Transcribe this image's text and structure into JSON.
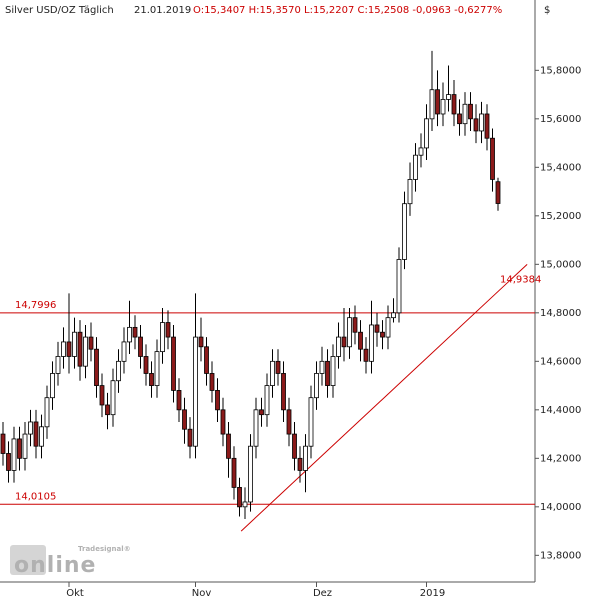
{
  "chart_data": {
    "type": "candlestick",
    "header": {
      "title": "Silver USD/OZ Täglich",
      "date": "21.01.2019",
      "ohlc_text": "O:15,3407 H:15,3570 L:15,2207 C:15,2508 -0,0963 -0,6277%"
    },
    "currency": "$",
    "logo": {
      "brand": "Tradesignal®",
      "name": "online"
    },
    "categories": [
      null,
      null,
      null,
      null,
      null,
      null,
      null,
      null,
      null,
      null,
      null,
      null,
      "Okt",
      null,
      null,
      null,
      null,
      null,
      null,
      null,
      null,
      null,
      null,
      null,
      null,
      null,
      null,
      null,
      null,
      null,
      null,
      null,
      null,
      null,
      null,
      "Nov",
      null,
      null,
      null,
      null,
      null,
      null,
      null,
      null,
      null,
      null,
      null,
      null,
      null,
      null,
      null,
      null,
      null,
      null,
      null,
      null,
      null,
      "Dez",
      null,
      null,
      null,
      null,
      null,
      null,
      null,
      null,
      null,
      null,
      null,
      null,
      null,
      null,
      null,
      null,
      null,
      null,
      null,
      "2019",
      null,
      null,
      null,
      null,
      null,
      null,
      null,
      null,
      null,
      null,
      null,
      null,
      null
    ],
    "open": [
      14.3,
      14.22,
      14.15,
      14.28,
      14.2,
      14.3,
      14.35,
      14.25,
      14.33,
      14.45,
      14.55,
      14.62,
      14.68,
      14.62,
      14.72,
      14.58,
      14.7,
      14.65,
      14.5,
      14.42,
      14.38,
      14.52,
      14.6,
      14.68,
      14.74,
      14.7,
      14.62,
      14.55,
      14.5,
      14.64,
      14.76,
      14.7,
      14.48,
      14.4,
      14.32,
      14.25,
      14.7,
      14.66,
      14.55,
      14.48,
      14.4,
      14.3,
      14.2,
      14.08,
      14.0,
      14.02,
      14.25,
      14.4,
      14.38,
      14.5,
      14.6,
      14.55,
      14.4,
      14.3,
      14.2,
      14.15,
      14.25,
      14.45,
      14.55,
      14.6,
      14.5,
      14.62,
      14.7,
      14.66,
      14.78,
      14.72,
      14.65,
      14.6,
      14.75,
      14.72,
      14.7,
      14.78,
      14.8,
      15.02,
      15.25,
      15.35,
      15.45,
      15.48,
      15.6,
      15.72,
      15.62,
      15.68,
      15.7,
      15.62,
      15.58,
      15.66,
      15.6,
      15.55,
      15.62,
      15.52,
      15.3407
    ],
    "high": [
      14.35,
      14.27,
      14.33,
      14.33,
      14.35,
      14.4,
      14.4,
      14.38,
      14.5,
      14.6,
      14.68,
      14.74,
      14.88,
      14.78,
      14.77,
      14.75,
      14.76,
      14.7,
      14.55,
      14.47,
      14.57,
      14.65,
      14.74,
      14.85,
      14.79,
      14.75,
      14.67,
      14.6,
      14.69,
      14.82,
      14.81,
      14.75,
      14.53,
      14.45,
      14.37,
      14.88,
      14.78,
      14.7,
      14.6,
      14.53,
      14.45,
      14.35,
      14.25,
      14.12,
      14.08,
      14.3,
      14.45,
      14.45,
      14.55,
      14.65,
      14.65,
      14.6,
      14.45,
      14.35,
      14.25,
      14.3,
      14.5,
      14.6,
      14.66,
      14.65,
      14.67,
      14.76,
      14.82,
      14.82,
      14.83,
      14.77,
      14.7,
      14.85,
      14.8,
      14.77,
      14.83,
      14.86,
      15.07,
      15.3,
      15.42,
      15.5,
      15.54,
      15.66,
      15.88,
      15.8,
      15.75,
      15.82,
      15.76,
      15.68,
      15.71,
      15.71,
      15.66,
      15.67,
      15.66,
      15.56,
      15.357
    ],
    "low": [
      14.17,
      14.1,
      14.1,
      14.15,
      14.15,
      14.25,
      14.2,
      14.2,
      14.28,
      14.4,
      14.5,
      14.57,
      14.55,
      14.57,
      14.52,
      14.53,
      14.6,
      14.45,
      14.37,
      14.32,
      14.33,
      14.47,
      14.55,
      14.63,
      14.65,
      14.57,
      14.5,
      14.45,
      14.45,
      14.59,
      14.65,
      14.43,
      14.35,
      14.26,
      14.2,
      14.2,
      14.6,
      14.5,
      14.43,
      14.35,
      14.25,
      14.12,
      14.03,
      13.96,
      13.95,
      13.98,
      14.2,
      14.33,
      14.33,
      14.45,
      14.5,
      14.35,
      14.25,
      14.15,
      14.1,
      14.06,
      14.2,
      14.4,
      14.5,
      14.45,
      14.45,
      14.57,
      14.6,
      14.61,
      14.67,
      14.6,
      14.55,
      14.55,
      14.66,
      14.65,
      14.65,
      14.76,
      14.76,
      14.98,
      15.2,
      15.3,
      15.4,
      15.43,
      15.55,
      15.57,
      15.57,
      15.63,
      15.57,
      15.53,
      15.53,
      15.55,
      15.5,
      15.5,
      15.47,
      15.3,
      15.2207
    ],
    "close": [
      14.22,
      14.15,
      14.28,
      14.2,
      14.3,
      14.35,
      14.25,
      14.33,
      14.45,
      14.55,
      14.62,
      14.68,
      14.62,
      14.72,
      14.58,
      14.7,
      14.65,
      14.5,
      14.42,
      14.38,
      14.52,
      14.6,
      14.68,
      14.74,
      14.7,
      14.62,
      14.55,
      14.5,
      14.64,
      14.76,
      14.7,
      14.48,
      14.4,
      14.32,
      14.25,
      14.7,
      14.66,
      14.55,
      14.48,
      14.4,
      14.3,
      14.2,
      14.08,
      14.0,
      14.02,
      14.25,
      14.4,
      14.38,
      14.5,
      14.6,
      14.55,
      14.4,
      14.3,
      14.2,
      14.15,
      14.25,
      14.45,
      14.55,
      14.6,
      14.5,
      14.62,
      14.7,
      14.66,
      14.78,
      14.72,
      14.65,
      14.6,
      14.75,
      14.72,
      14.7,
      14.78,
      14.8,
      15.02,
      15.25,
      15.35,
      15.45,
      15.48,
      15.6,
      15.72,
      15.62,
      15.68,
      15.7,
      15.62,
      15.58,
      15.66,
      15.6,
      15.55,
      15.62,
      15.52,
      15.35,
      15.2508
    ],
    "up_color": "#ffffff",
    "down_color": "#8b1a1a",
    "line_color": "#cc0000",
    "ylim": [
      13.69,
      16.09
    ],
    "yticks": [
      {
        "value": 13.8,
        "label": "13,8000"
      },
      {
        "value": 14.0,
        "label": "14,0000"
      },
      {
        "value": 14.2,
        "label": "14,2000"
      },
      {
        "value": 14.4,
        "label": "14,4000"
      },
      {
        "value": 14.6,
        "label": "14,6000"
      },
      {
        "value": 14.8,
        "label": "14,8000"
      },
      {
        "value": 15.0,
        "label": "15,0000"
      },
      {
        "value": 15.2,
        "label": "15,2000"
      },
      {
        "value": 15.4,
        "label": "15,4000"
      },
      {
        "value": 15.6,
        "label": "15,6000"
      },
      {
        "value": 15.8,
        "label": "15,8000"
      }
    ],
    "hlines": [
      {
        "value": 14.7996,
        "label": "14,7996"
      },
      {
        "value": 14.0105,
        "label": "14,0105"
      }
    ],
    "trendline": {
      "x": [
        43.3,
        95.3
      ],
      "values": [
        13.9,
        15.0
      ],
      "label": {
        "value": 14.9384,
        "label": "14,9384"
      }
    }
  }
}
